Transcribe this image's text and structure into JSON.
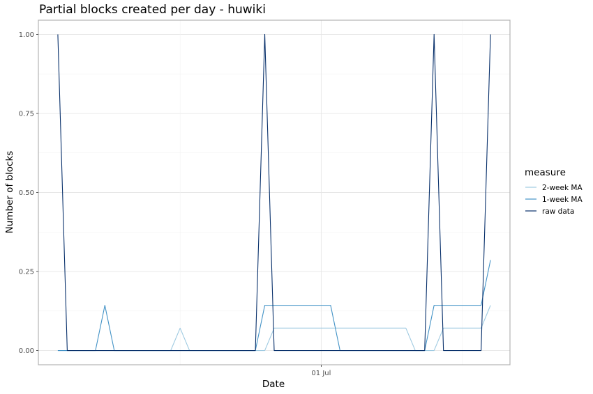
{
  "chart_data": {
    "type": "line",
    "title": "Partial blocks created per day - huwiki",
    "xlabel": "Date",
    "ylabel": "Number of blocks",
    "x": [
      "2018-06-03",
      "2018-06-04",
      "2018-06-05",
      "2018-06-06",
      "2018-06-07",
      "2018-06-08",
      "2018-06-09",
      "2018-06-10",
      "2018-06-11",
      "2018-06-12",
      "2018-06-13",
      "2018-06-14",
      "2018-06-15",
      "2018-06-16",
      "2018-06-17",
      "2018-06-18",
      "2018-06-19",
      "2018-06-20",
      "2018-06-21",
      "2018-06-22",
      "2018-06-23",
      "2018-06-24",
      "2018-06-25",
      "2018-06-26",
      "2018-06-27",
      "2018-06-28",
      "2018-06-29",
      "2018-06-30",
      "2018-07-01",
      "2018-07-02",
      "2018-07-03",
      "2018-07-04",
      "2018-07-05",
      "2018-07-06",
      "2018-07-07",
      "2018-07-08",
      "2018-07-09",
      "2018-07-10",
      "2018-07-11",
      "2018-07-12",
      "2018-07-13",
      "2018-07-14",
      "2018-07-15",
      "2018-07-16",
      "2018-07-17",
      "2018-07-18",
      "2018-07-19"
    ],
    "series": [
      {
        "name": "2-week MA",
        "color": "#9ecae1",
        "values": [
          0,
          0,
          0,
          0,
          0,
          0,
          0,
          0,
          0,
          0,
          0,
          0,
          0,
          0.071,
          0,
          0,
          0,
          0,
          0,
          0,
          0,
          0,
          0,
          0.071,
          0.071,
          0.071,
          0.071,
          0.071,
          0.071,
          0.071,
          0.071,
          0.071,
          0.071,
          0.071,
          0.071,
          0.071,
          0.071,
          0.071,
          0,
          0,
          0,
          0.071,
          0.071,
          0.071,
          0.071,
          0.071,
          0.143
        ]
      },
      {
        "name": "1-week MA",
        "color": "#4292c6",
        "values": [
          0,
          0,
          0,
          0,
          0,
          0.143,
          0,
          0,
          0,
          0,
          0,
          0,
          0,
          0,
          0,
          0,
          0,
          0,
          0,
          0,
          0,
          0,
          0.143,
          0.143,
          0.143,
          0.143,
          0.143,
          0.143,
          0.143,
          0.143,
          0,
          0,
          0,
          0,
          0,
          0,
          0,
          0,
          0,
          0,
          0.143,
          0.143,
          0.143,
          0.143,
          0.143,
          0.143,
          0.286
        ]
      },
      {
        "name": "raw data",
        "color": "#08306b",
        "values": [
          1,
          0,
          0,
          0,
          0,
          0,
          0,
          0,
          0,
          0,
          0,
          0,
          0,
          0,
          0,
          0,
          0,
          0,
          0,
          0,
          0,
          0,
          1,
          0,
          0,
          0,
          0,
          0,
          0,
          0,
          0,
          0,
          0,
          0,
          0,
          0,
          0,
          0,
          0,
          0,
          1,
          0,
          0,
          0,
          0,
          0,
          1
        ]
      }
    ],
    "ylim": [
      0,
      1
    ],
    "y_ticks": [
      0,
      0.25,
      0.5,
      0.75,
      1
    ],
    "y_tick_labels": [
      "0.00",
      "0.25",
      "0.50",
      "0.75",
      "1.00"
    ],
    "x_ticks": [
      "2018-07-01"
    ],
    "x_tick_labels": [
      "01 Jul"
    ],
    "grid": true,
    "legend": {
      "title": "measure",
      "position": "right",
      "entries": [
        "2-week MA",
        "1-week MA",
        "raw data"
      ]
    }
  }
}
